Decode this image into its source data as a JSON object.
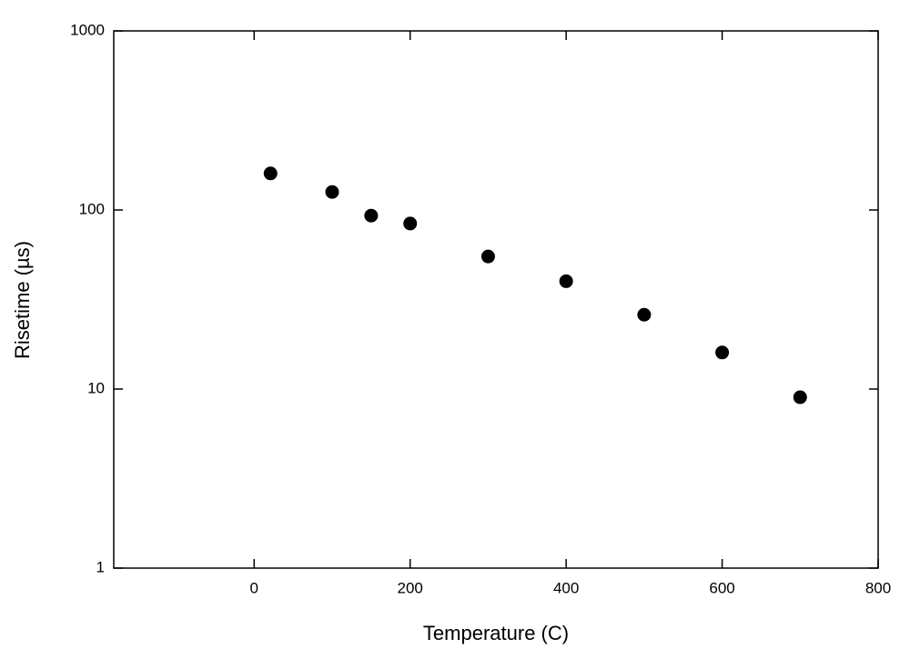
{
  "chart_data": {
    "type": "scatter",
    "x_label": "Temperature (C)",
    "y_label": "Risetime (µs)",
    "x": [
      21,
      100,
      150,
      200,
      300,
      400,
      500,
      600,
      700
    ],
    "values": [
      160,
      126,
      93,
      84,
      55,
      40,
      26,
      16,
      9
    ],
    "color": "#000000",
    "xlim": [
      -180,
      800
    ],
    "xticks": [
      0,
      200,
      400,
      600,
      800
    ],
    "ylim": [
      1,
      1000
    ],
    "yticks": [
      1,
      10,
      100,
      1000
    ],
    "log_y": true
  }
}
